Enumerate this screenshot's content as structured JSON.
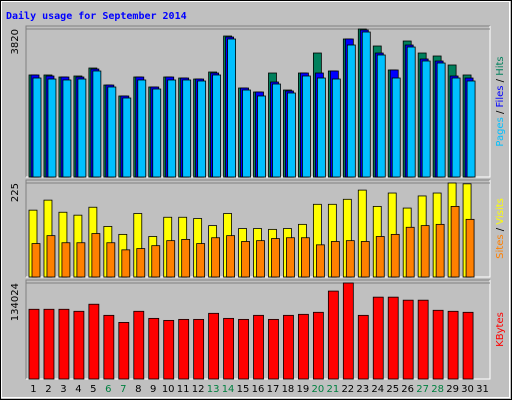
{
  "chart_data": [
    {
      "type": "bar",
      "title": "Daily usage for September 2014",
      "ylim": [
        0,
        3820
      ],
      "yticks": [
        3820
      ],
      "legend_separator": " / ",
      "series": [
        {
          "name": "Hits",
          "color": "#00805c",
          "values": [
            2633,
            2633,
            2581,
            2607,
            2813,
            2374,
            2091,
            2581,
            2323,
            2581,
            2555,
            2529,
            2710,
            3639,
            2297,
            2194,
            2684,
            2245,
            2684,
            3200,
            2736,
            3562,
            3820,
            3381,
            2762,
            3510,
            3200,
            3123,
            2891,
            2633,
            null
          ]
        },
        {
          "name": "Files",
          "color": "#0000ff",
          "values": [
            2633,
            2607,
            2581,
            2581,
            2787,
            2374,
            2091,
            2581,
            2323,
            2581,
            2555,
            2529,
            2684,
            3613,
            2297,
            2194,
            2452,
            2220,
            2684,
            2684,
            2736,
            3562,
            3794,
            3200,
            2762,
            3407,
            3046,
            2994,
            2607,
            2555,
            null
          ]
        },
        {
          "name": "Pages",
          "color": "#00c0ff",
          "values": [
            2555,
            2529,
            2504,
            2529,
            2736,
            2323,
            2039,
            2504,
            2271,
            2504,
            2504,
            2478,
            2633,
            3562,
            2245,
            2091,
            2400,
            2168,
            2607,
            2555,
            2529,
            3407,
            3742,
            3149,
            2555,
            3355,
            2994,
            2942,
            2555,
            2478,
            null
          ]
        }
      ]
    },
    {
      "type": "bar",
      "ylim": [
        0,
        225
      ],
      "yticks": [
        225
      ],
      "legend_separator": " / ",
      "series": [
        {
          "name": "Visits",
          "color": "#ffff00",
          "values": [
            160,
            184,
            155,
            148,
            167,
            121,
            102,
            152,
            97,
            143,
            143,
            140,
            123,
            152,
            116,
            116,
            114,
            116,
            126,
            174,
            174,
            186,
            208,
            169,
            201,
            165,
            194,
            201,
            225,
            223,
            null
          ]
        },
        {
          "name": "Sites",
          "color": "#ff8000",
          "values": [
            80,
            99,
            82,
            82,
            104,
            82,
            65,
            68,
            75,
            87,
            90,
            80,
            94,
            99,
            85,
            87,
            92,
            94,
            94,
            77,
            85,
            87,
            85,
            97,
            102,
            119,
            123,
            126,
            169,
            138,
            null
          ]
        }
      ]
    },
    {
      "type": "bar",
      "ylim": [
        0,
        134024
      ],
      "yticks": [
        134024
      ],
      "categories": [
        "1",
        "2",
        "3",
        "4",
        "5",
        "6",
        "7",
        "8",
        "9",
        "10",
        "11",
        "12",
        "13",
        "14",
        "15",
        "16",
        "17",
        "18",
        "19",
        "20",
        "21",
        "22",
        "23",
        "24",
        "25",
        "26",
        "27",
        "28",
        "29",
        "30",
        "31"
      ],
      "category_colors": [
        "#000",
        "#000",
        "#000",
        "#000",
        "#000",
        "#008040",
        "#008040",
        "#000",
        "#000",
        "#000",
        "#000",
        "#000",
        "#008040",
        "#008040",
        "#000",
        "#000",
        "#000",
        "#000",
        "#000",
        "#008040",
        "#008040",
        "#000",
        "#000",
        "#000",
        "#000",
        "#000",
        "#008040",
        "#008040",
        "#000",
        "#000",
        "#000"
      ],
      "series": [
        {
          "name": "KBytes",
          "color": "#ff0000",
          "values": [
            97345,
            97345,
            97345,
            94524,
            104399,
            88880,
            79005,
            94524,
            84648,
            81826,
            83237,
            83237,
            91702,
            84648,
            83237,
            88880,
            83237,
            88880,
            90291,
            93113,
            122740,
            134024,
            88880,
            114275,
            114275,
            110042,
            110042,
            95934,
            94524,
            93113,
            null
          ]
        }
      ]
    }
  ]
}
